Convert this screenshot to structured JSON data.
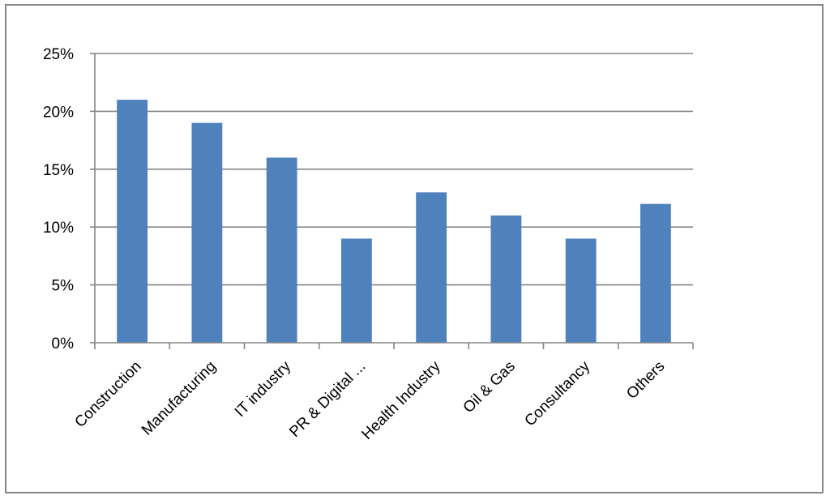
{
  "chart_data": {
    "type": "bar",
    "categories": [
      "Construction",
      "Manufacturing",
      "IT industry",
      "PR & Digital ...",
      "Health Industry",
      "Oil & Gas",
      "Consultancy",
      "Others"
    ],
    "values": [
      21,
      19,
      16,
      9,
      13,
      11,
      9,
      12
    ],
    "ylim": [
      0,
      25
    ],
    "yticks": [
      0,
      5,
      10,
      15,
      20,
      25
    ],
    "ytick_labels": [
      "0%",
      "5%",
      "10%",
      "15%",
      "20%",
      "25%"
    ],
    "value_format": "percent",
    "grid": true,
    "legend": "none",
    "colors": {
      "bar": "#4F81BD",
      "grid": "#868686",
      "axis": "#868686"
    }
  }
}
